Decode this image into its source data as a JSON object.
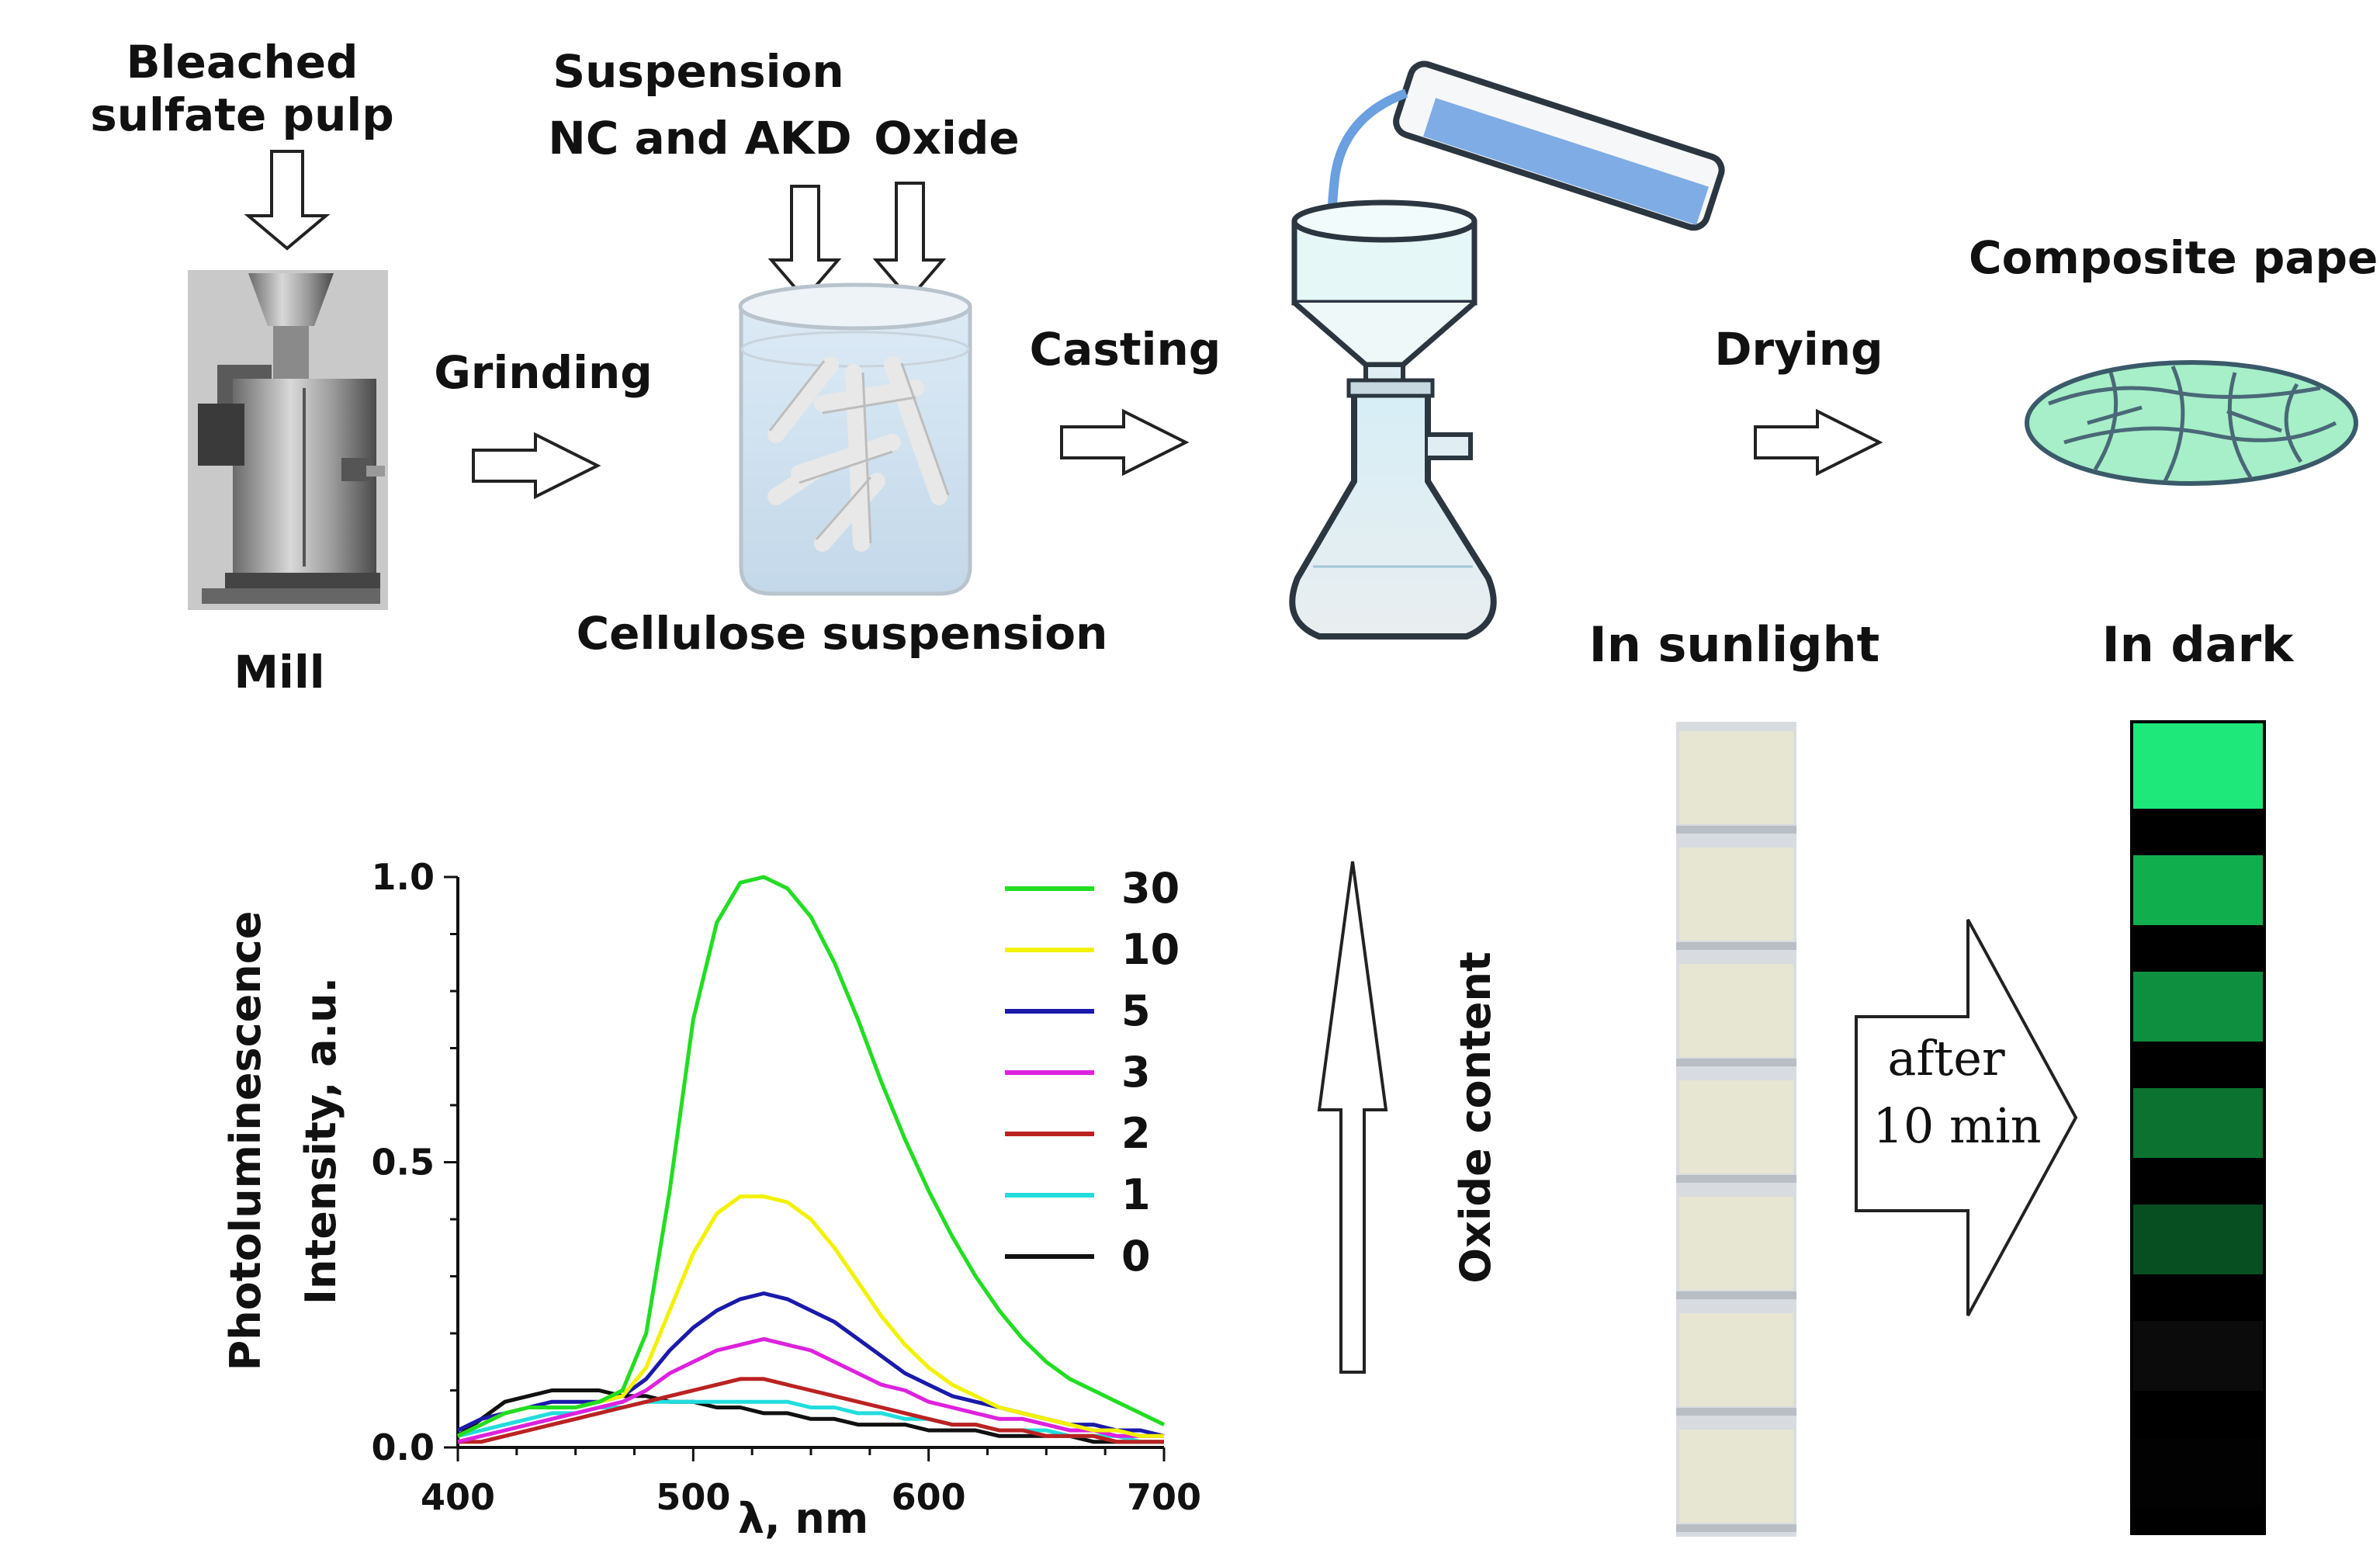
{
  "process": {
    "pulp_label_line1": "Bleached",
    "pulp_label_line2": "sulfate pulp",
    "mill_label": "Mill",
    "grinding_label": "Grinding",
    "suspension_label_line1": "Suspension",
    "suspension_label_line2": "NC and AKD",
    "oxide_label": "Oxide",
    "cellulose_label": "Cellulose suspension",
    "casting_label": "Casting",
    "drying_label": "Drying",
    "composite_label": "Composite paper"
  },
  "strips": {
    "sunlight_label": "In sunlight",
    "dark_label": "In dark",
    "after_line1": "after",
    "after_line2": "10 min",
    "oxide_content_label": "Oxide content",
    "sunlight_color": "#e6e6d2",
    "dark_bands": [
      {
        "color": "#1ee87a",
        "brightness": 1.0
      },
      {
        "color": "#14c85a",
        "brightness": 0.8
      },
      {
        "color": "#12b24e",
        "brightness": 0.7
      },
      {
        "color": "#0f9a40",
        "brightness": 0.6
      },
      {
        "color": "#0b7a32",
        "brightness": 0.45
      },
      {
        "color": "#1a1a1a",
        "brightness": 0.1
      },
      {
        "color": "#050505",
        "brightness": 0.0
      }
    ]
  },
  "chart_data": {
    "type": "line",
    "title": "",
    "xlabel": "λ, nm",
    "ylabel_line1": "Photoluminescence",
    "ylabel_line2": "Intensity, a.u.",
    "xlim": [
      400,
      700
    ],
    "ylim": [
      0,
      1.0
    ],
    "xticks": [
      "400",
      "500",
      "600",
      "700"
    ],
    "yticks": [
      "0.0",
      "0.5",
      "1.0"
    ],
    "legend_position": "top-right",
    "x": [
      400,
      410,
      420,
      430,
      440,
      450,
      460,
      470,
      480,
      490,
      500,
      510,
      520,
      530,
      540,
      550,
      560,
      570,
      580,
      590,
      600,
      610,
      620,
      630,
      640,
      650,
      660,
      670,
      680,
      690,
      700
    ],
    "series": [
      {
        "name": "30",
        "color": "#22dd22",
        "values": [
          0.02,
          0.04,
          0.06,
          0.07,
          0.07,
          0.07,
          0.08,
          0.1,
          0.2,
          0.45,
          0.75,
          0.92,
          0.99,
          1.0,
          0.98,
          0.93,
          0.85,
          0.75,
          0.64,
          0.54,
          0.45,
          0.37,
          0.3,
          0.24,
          0.19,
          0.15,
          0.12,
          0.1,
          0.08,
          0.06,
          0.04
        ]
      },
      {
        "name": "10",
        "color": "#f2f200",
        "values": [
          0.02,
          0.04,
          0.06,
          0.07,
          0.07,
          0.07,
          0.08,
          0.09,
          0.14,
          0.24,
          0.34,
          0.41,
          0.44,
          0.44,
          0.43,
          0.4,
          0.35,
          0.29,
          0.23,
          0.18,
          0.14,
          0.11,
          0.09,
          0.07,
          0.06,
          0.05,
          0.04,
          0.03,
          0.03,
          0.02,
          0.02
        ]
      },
      {
        "name": "5",
        "color": "#1a1aaa",
        "values": [
          0.03,
          0.05,
          0.06,
          0.07,
          0.08,
          0.08,
          0.08,
          0.09,
          0.12,
          0.17,
          0.21,
          0.24,
          0.26,
          0.27,
          0.26,
          0.24,
          0.22,
          0.19,
          0.16,
          0.13,
          0.11,
          0.09,
          0.08,
          0.07,
          0.06,
          0.05,
          0.04,
          0.04,
          0.03,
          0.03,
          0.02
        ]
      },
      {
        "name": "3",
        "color": "#dd22dd",
        "values": [
          0.01,
          0.02,
          0.03,
          0.04,
          0.05,
          0.06,
          0.07,
          0.08,
          0.1,
          0.13,
          0.15,
          0.17,
          0.18,
          0.19,
          0.18,
          0.17,
          0.15,
          0.13,
          0.11,
          0.1,
          0.08,
          0.07,
          0.06,
          0.05,
          0.05,
          0.04,
          0.03,
          0.03,
          0.02,
          0.02,
          0.02
        ]
      },
      {
        "name": "2",
        "color": "#bb2222",
        "values": [
          0.01,
          0.01,
          0.02,
          0.03,
          0.04,
          0.05,
          0.06,
          0.07,
          0.08,
          0.09,
          0.1,
          0.11,
          0.12,
          0.12,
          0.11,
          0.1,
          0.09,
          0.08,
          0.07,
          0.06,
          0.05,
          0.04,
          0.04,
          0.03,
          0.03,
          0.02,
          0.02,
          0.02,
          0.01,
          0.01,
          0.01
        ]
      },
      {
        "name": "1",
        "color": "#22dddd",
        "values": [
          0.02,
          0.03,
          0.04,
          0.05,
          0.06,
          0.06,
          0.07,
          0.07,
          0.08,
          0.08,
          0.08,
          0.08,
          0.08,
          0.08,
          0.08,
          0.07,
          0.07,
          0.06,
          0.06,
          0.05,
          0.05,
          0.04,
          0.04,
          0.03,
          0.03,
          0.03,
          0.02,
          0.02,
          0.02,
          0.01,
          0.01
        ]
      },
      {
        "name": "0",
        "color": "#111111",
        "values": [
          0.02,
          0.05,
          0.08,
          0.09,
          0.1,
          0.1,
          0.1,
          0.09,
          0.09,
          0.08,
          0.08,
          0.07,
          0.07,
          0.06,
          0.06,
          0.05,
          0.05,
          0.04,
          0.04,
          0.04,
          0.03,
          0.03,
          0.03,
          0.02,
          0.02,
          0.02,
          0.02,
          0.01,
          0.01,
          0.01,
          0.01
        ]
      }
    ]
  }
}
